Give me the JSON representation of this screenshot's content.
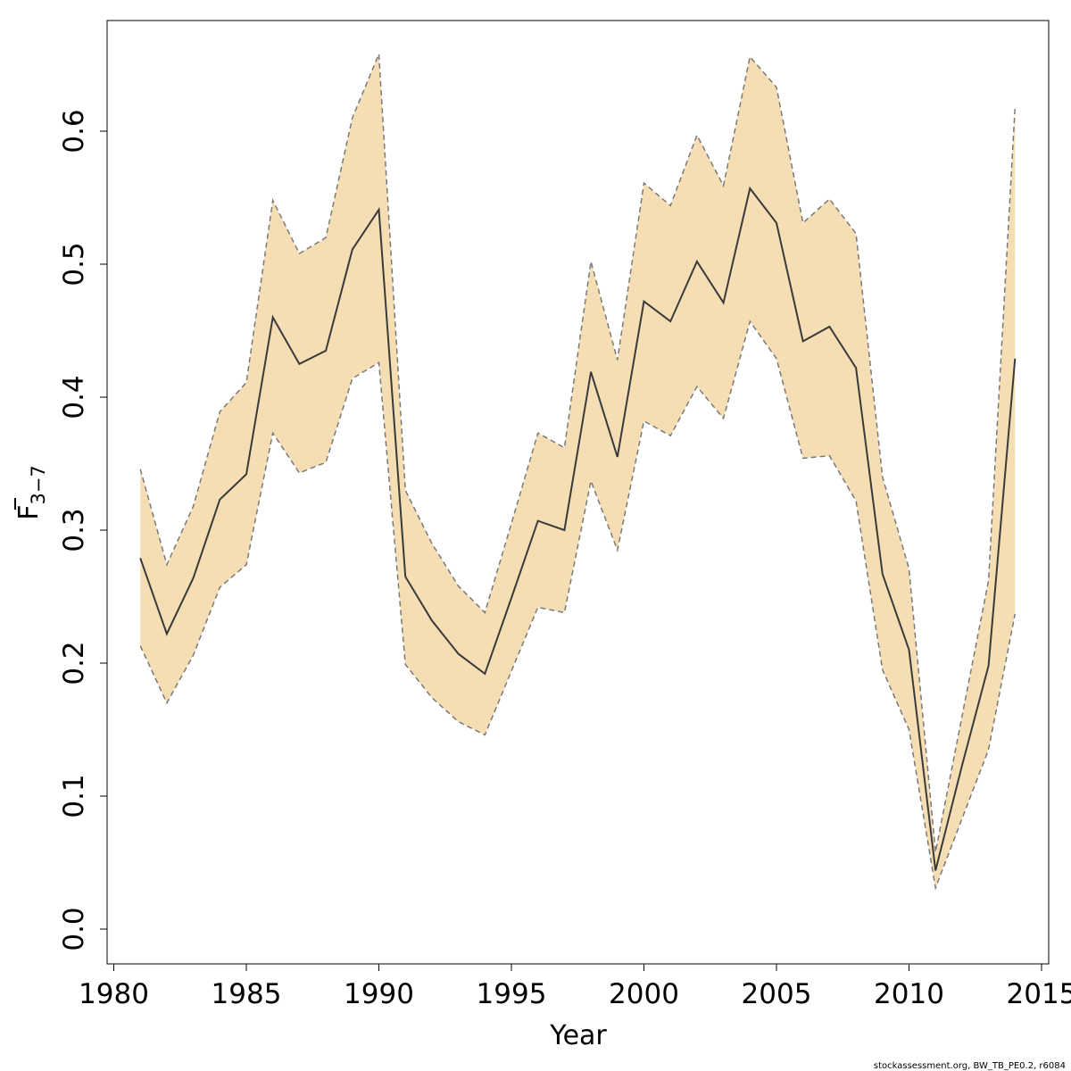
{
  "chart_data": {
    "type": "line",
    "xlabel": "Year",
    "ylabel": {
      "main": "F",
      "subscript": "3−7"
    },
    "xlim": [
      1980,
      2015
    ],
    "ylim": [
      0.0,
      0.7
    ],
    "x_ticks": [
      1980,
      1985,
      1990,
      1995,
      2000,
      2005,
      2010,
      2015
    ],
    "y_ticks": [
      "0.0",
      "0.1",
      "0.2",
      "0.3",
      "0.4",
      "0.5",
      "0.6"
    ],
    "grid": false,
    "x": [
      1981,
      1982,
      1983,
      1984,
      1985,
      1986,
      1987,
      1988,
      1989,
      1990,
      1991,
      1992,
      1993,
      1994,
      1995,
      1996,
      1997,
      1998,
      1999,
      2000,
      2001,
      2002,
      2003,
      2004,
      2005,
      2006,
      2007,
      2008,
      2009,
      2010,
      2011,
      2012,
      2013,
      2014
    ],
    "series": [
      {
        "role": "estimate",
        "values": [
          0.279,
          0.222,
          0.264,
          0.323,
          0.342,
          0.46,
          0.425,
          0.435,
          0.511,
          0.541,
          0.265,
          0.232,
          0.207,
          0.192,
          0.249,
          0.307,
          0.3,
          0.419,
          0.355,
          0.472,
          0.457,
          0.502,
          0.471,
          0.557,
          0.531,
          0.442,
          0.453,
          0.422,
          0.267,
          0.21,
          0.044,
          0.123,
          0.198,
          0.429
        ]
      },
      {
        "role": "upper_bound",
        "values": [
          0.346,
          0.274,
          0.318,
          0.389,
          0.411,
          0.548,
          0.508,
          0.52,
          0.61,
          0.658,
          0.33,
          0.29,
          0.258,
          0.238,
          0.305,
          0.373,
          0.362,
          0.502,
          0.428,
          0.561,
          0.544,
          0.597,
          0.559,
          0.656,
          0.633,
          0.531,
          0.549,
          0.523,
          0.34,
          0.271,
          0.058,
          0.16,
          0.262,
          0.618
        ]
      },
      {
        "role": "lower_bound",
        "values": [
          0.213,
          0.17,
          0.206,
          0.257,
          0.274,
          0.373,
          0.343,
          0.351,
          0.414,
          0.426,
          0.199,
          0.174,
          0.156,
          0.146,
          0.194,
          0.242,
          0.238,
          0.337,
          0.285,
          0.382,
          0.371,
          0.408,
          0.384,
          0.457,
          0.429,
          0.354,
          0.356,
          0.322,
          0.195,
          0.15,
          0.031,
          0.083,
          0.135,
          0.237
        ]
      }
    ],
    "colors": {
      "band_fill": "#f5deb3",
      "band_edge": "#7a7a7a",
      "line": "#3a3a3a"
    }
  },
  "footer": "stockassessment.org, BW_TB_PE0.2, r6084"
}
